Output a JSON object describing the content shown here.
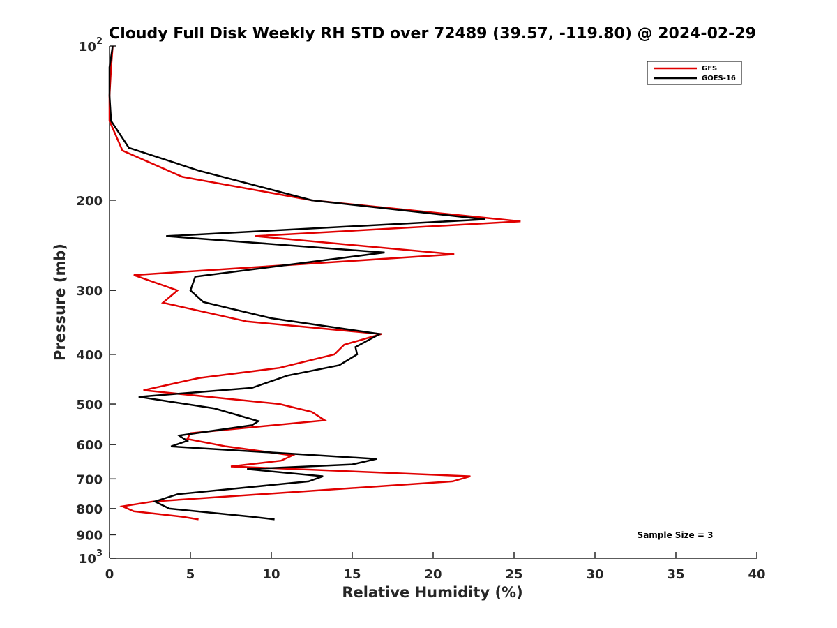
{
  "chart_data": {
    "type": "line",
    "title": "Cloudy Full Disk Weekly RH STD over 72489 (39.57, -119.80) @ 2024-02-29",
    "xlabel": "Relative Humidity (%)",
    "ylabel": "Pressure (mb)",
    "xlim": [
      0,
      40
    ],
    "ylim": [
      100,
      1000
    ],
    "yscale": "log",
    "y_reversed": true,
    "x_ticks": [
      0,
      5,
      10,
      15,
      20,
      25,
      30,
      35,
      40
    ],
    "x_tick_labels": [
      "0",
      "5",
      "10",
      "15",
      "20",
      "25",
      "30",
      "35",
      "40"
    ],
    "y_ticks": [
      100,
      200,
      300,
      400,
      500,
      600,
      700,
      800,
      900,
      1000
    ],
    "y_tick_labels": [
      "10²",
      "200",
      "300",
      "400",
      "500",
      "600",
      "700",
      "800",
      "900",
      "10³"
    ],
    "grid": false,
    "legend": {
      "position": "top-right",
      "entries": [
        "GFS",
        "GOES-16"
      ]
    },
    "annotation": "Sample Size = 3",
    "series": [
      {
        "name": "GFS",
        "color": "#e00000",
        "points": [
          [
            0.2,
            100
          ],
          [
            0.1,
            110
          ],
          [
            0.0,
            125
          ],
          [
            0.0,
            140
          ],
          [
            0.8,
            160
          ],
          [
            4.5,
            180
          ],
          [
            12.5,
            200
          ],
          [
            25.4,
            220
          ],
          [
            9.0,
            235
          ],
          [
            21.3,
            255
          ],
          [
            1.5,
            280
          ],
          [
            4.2,
            300
          ],
          [
            3.3,
            317
          ],
          [
            8.5,
            345
          ],
          [
            16.8,
            365
          ],
          [
            14.5,
            383
          ],
          [
            13.9,
            400
          ],
          [
            10.5,
            425
          ],
          [
            5.5,
            445
          ],
          [
            2.1,
            470
          ],
          [
            10.5,
            500
          ],
          [
            12.5,
            518
          ],
          [
            13.3,
            538
          ],
          [
            5.0,
            570
          ],
          [
            4.8,
            585
          ],
          [
            7.2,
            605
          ],
          [
            11.3,
            630
          ],
          [
            10.6,
            645
          ],
          [
            7.5,
            662
          ],
          [
            22.3,
            692
          ],
          [
            21.2,
            708
          ],
          [
            2.7,
            775
          ],
          [
            0.8,
            792
          ],
          [
            1.5,
            810
          ],
          [
            4.5,
            830
          ],
          [
            5.5,
            840
          ]
        ]
      },
      {
        "name": "GOES-16",
        "color": "#000000",
        "points": [
          [
            0.2,
            100
          ],
          [
            0.0,
            110
          ],
          [
            0.0,
            125
          ],
          [
            0.1,
            140
          ],
          [
            1.2,
            158
          ],
          [
            5.5,
            175
          ],
          [
            12.5,
            200
          ],
          [
            23.2,
            218
          ],
          [
            3.5,
            235
          ],
          [
            17.0,
            253
          ],
          [
            5.3,
            282
          ],
          [
            5.0,
            300
          ],
          [
            5.8,
            316
          ],
          [
            10.0,
            340
          ],
          [
            16.7,
            365
          ],
          [
            15.2,
            387
          ],
          [
            15.3,
            400
          ],
          [
            14.2,
            420
          ],
          [
            11.0,
            440
          ],
          [
            8.8,
            465
          ],
          [
            1.8,
            484
          ],
          [
            6.5,
            510
          ],
          [
            9.2,
            540
          ],
          [
            8.8,
            550
          ],
          [
            4.3,
            576
          ],
          [
            4.8,
            590
          ],
          [
            3.8,
            605
          ],
          [
            16.5,
            640
          ],
          [
            15.0,
            656
          ],
          [
            8.5,
            670
          ],
          [
            13.2,
            692
          ],
          [
            12.3,
            708
          ],
          [
            4.2,
            750
          ],
          [
            2.8,
            775
          ],
          [
            3.7,
            800
          ],
          [
            8.8,
            830
          ],
          [
            10.2,
            840
          ]
        ]
      }
    ]
  }
}
